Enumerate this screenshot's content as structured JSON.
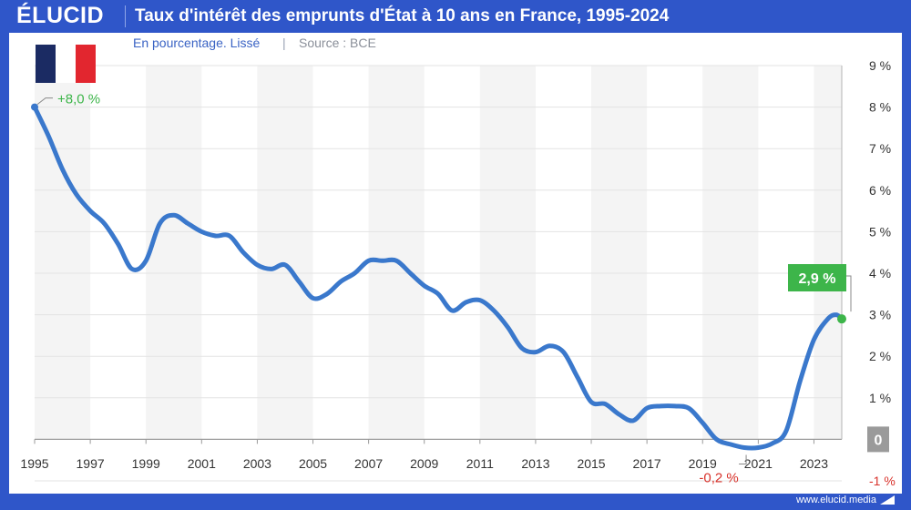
{
  "brand": {
    "logo": "ÉLUCID",
    "url": "www.elucid.media"
  },
  "chart_data": {
    "type": "line",
    "title": "Taux d'intérêt des emprunts d'État à 10 ans en France, 1995-2024",
    "subtitle": "En pourcentage. Lissé",
    "source": "Source : BCE",
    "xlabel": "",
    "ylabel": "",
    "xlim": [
      1995,
      2024
    ],
    "ylim": [
      -1,
      9
    ],
    "x_ticks": [
      "1995",
      "1997",
      "1999",
      "2001",
      "2003",
      "2005",
      "2007",
      "2009",
      "2011",
      "2013",
      "2015",
      "2017",
      "2019",
      "2021",
      "2023"
    ],
    "y_ticks": [
      "9 %",
      "8 %",
      "7 %",
      "6 %",
      "5 %",
      "4 %",
      "3 %",
      "2 %",
      "1 %",
      "0",
      "-1 %"
    ],
    "series": [
      {
        "name": "Taux à 10 ans",
        "color": "#3a78cc",
        "x": [
          1995.0,
          1995.5,
          1996.0,
          1996.5,
          1997.0,
          1997.5,
          1998.0,
          1998.5,
          1999.0,
          1999.5,
          2000.0,
          2000.5,
          2001.0,
          2001.5,
          2002.0,
          2002.5,
          2003.0,
          2003.5,
          2004.0,
          2004.5,
          2005.0,
          2005.5,
          2006.0,
          2006.5,
          2007.0,
          2007.5,
          2008.0,
          2008.5,
          2009.0,
          2009.5,
          2010.0,
          2010.5,
          2011.0,
          2011.5,
          2012.0,
          2012.5,
          2013.0,
          2013.5,
          2014.0,
          2014.5,
          2015.0,
          2015.5,
          2016.0,
          2016.5,
          2017.0,
          2017.5,
          2018.0,
          2018.5,
          2019.0,
          2019.5,
          2020.0,
          2020.5,
          2021.0,
          2021.5,
          2022.0,
          2022.5,
          2023.0,
          2023.5,
          2023.8,
          2024.0
        ],
        "values": [
          8.0,
          7.3,
          6.5,
          5.9,
          5.5,
          5.2,
          4.7,
          4.1,
          4.3,
          5.2,
          5.4,
          5.2,
          5.0,
          4.9,
          4.9,
          4.5,
          4.2,
          4.1,
          4.2,
          3.8,
          3.4,
          3.5,
          3.8,
          4.0,
          4.3,
          4.3,
          4.3,
          4.0,
          3.7,
          3.5,
          3.1,
          3.3,
          3.35,
          3.1,
          2.7,
          2.2,
          2.1,
          2.25,
          2.1,
          1.5,
          0.9,
          0.85,
          0.6,
          0.45,
          0.75,
          0.8,
          0.8,
          0.75,
          0.4,
          0.0,
          -0.12,
          -0.2,
          -0.2,
          -0.1,
          0.2,
          1.4,
          2.4,
          2.9,
          3.0,
          2.9
        ]
      }
    ],
    "annotations": [
      {
        "text": "+8,0 %",
        "x": 1995.0,
        "y": 8.0,
        "color": "#3db54a"
      },
      {
        "text": "-0,2 %",
        "x": 2020.5,
        "y": -0.2,
        "color": "#d8322b"
      },
      {
        "text": "2,9 %",
        "x": 2024.0,
        "y": 2.9,
        "color": "#3db54a"
      }
    ],
    "zero_badge": "0",
    "flag": "France"
  }
}
